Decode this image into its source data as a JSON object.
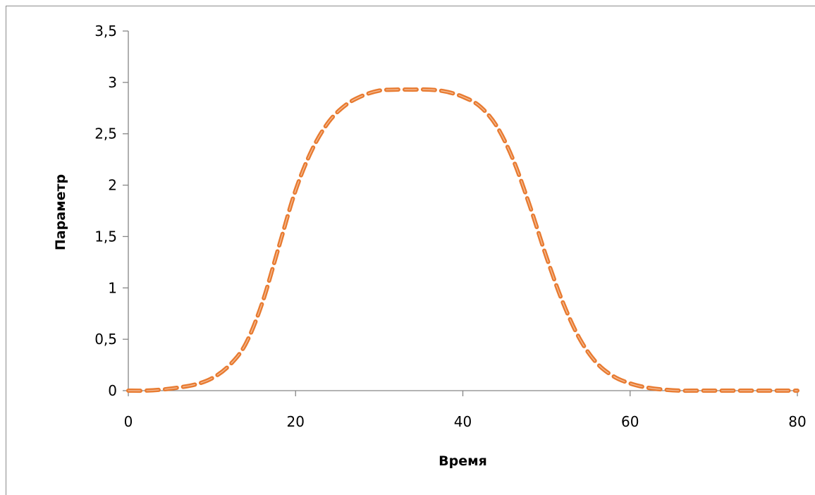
{
  "chart_data": {
    "type": "line",
    "title": "",
    "xlabel": "Время",
    "ylabel": "Параметр",
    "xlim": [
      0,
      80
    ],
    "ylim": [
      0,
      3.5
    ],
    "x_ticks": [
      {
        "value": 0,
        "label": "0"
      },
      {
        "value": 20,
        "label": "20"
      },
      {
        "value": 40,
        "label": "40"
      },
      {
        "value": 60,
        "label": "60"
      },
      {
        "value": 80,
        "label": "80"
      }
    ],
    "y_ticks": [
      {
        "value": 0,
        "label": "0"
      },
      {
        "value": 0.5,
        "label": "0,5"
      },
      {
        "value": 1,
        "label": "1"
      },
      {
        "value": 1.5,
        "label": "1,5"
      },
      {
        "value": 2,
        "label": "2"
      },
      {
        "value": 2.5,
        "label": "2,5"
      },
      {
        "value": 3,
        "label": "3"
      },
      {
        "value": 3.5,
        "label": "3,5"
      }
    ],
    "grid": false,
    "legend": "none",
    "series": [
      {
        "color": "#E87B31",
        "line_style": "dashed",
        "x": [
          0,
          2,
          4,
          6,
          8,
          10,
          12,
          14,
          16,
          18,
          20,
          22,
          24,
          26,
          28,
          30,
          32,
          34,
          36,
          38,
          40,
          42,
          44,
          46,
          48,
          50,
          52,
          54,
          56,
          58,
          60,
          62,
          64,
          66,
          68,
          70,
          72,
          74,
          76,
          78,
          80
        ],
        "y": [
          0.0,
          0.0,
          0.01,
          0.03,
          0.06,
          0.12,
          0.24,
          0.45,
          0.85,
          1.4,
          1.95,
          2.35,
          2.62,
          2.78,
          2.87,
          2.92,
          2.93,
          2.93,
          2.93,
          2.91,
          2.86,
          2.77,
          2.58,
          2.25,
          1.8,
          1.3,
          0.85,
          0.5,
          0.27,
          0.14,
          0.07,
          0.03,
          0.01,
          0.0,
          0.0,
          0.0,
          0.0,
          0.0,
          0.0,
          0.0,
          0.0
        ]
      }
    ]
  }
}
